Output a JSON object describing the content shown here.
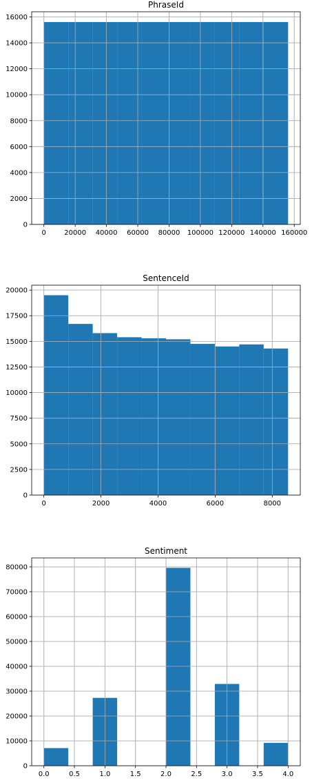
{
  "chart_data": [
    {
      "type": "bar",
      "title": "PhraseId",
      "bin_edges": [
        1,
        15606,
        31212,
        46818,
        62424,
        78030,
        93636,
        109241,
        124847,
        140453,
        156060
      ],
      "values": [
        15606,
        15606,
        15606,
        15606,
        15606,
        15606,
        15606,
        15606,
        15606,
        15606
      ],
      "color": "#1f77b4",
      "xlim": [
        -7800,
        163860
      ],
      "ylim": [
        0,
        16400
      ],
      "xticks": [
        0,
        20000,
        40000,
        60000,
        80000,
        100000,
        120000,
        140000,
        160000
      ],
      "yticks": [
        0,
        2000,
        4000,
        6000,
        8000,
        10000,
        12000,
        14000,
        16000
      ],
      "xlabel": "",
      "ylabel": "",
      "grid": true
    },
    {
      "type": "bar",
      "title": "SentenceId",
      "bin_edges": [
        1,
        856.3,
        1711.6,
        2566.9,
        3422.2,
        4277.5,
        5132.8,
        5988.1,
        6843.4,
        7698.7,
        8554
      ],
      "values": [
        19500,
        16700,
        15800,
        15400,
        15300,
        15200,
        14750,
        14500,
        14700,
        14300
      ],
      "color": "#1f77b4",
      "xlim": [
        -426.7,
        8981.7
      ],
      "ylim": [
        0,
        20480
      ],
      "xticks": [
        0,
        2000,
        4000,
        6000,
        8000
      ],
      "yticks": [
        0,
        2500,
        5000,
        7500,
        10000,
        12500,
        15000,
        17500,
        20000
      ],
      "xlabel": "",
      "ylabel": "",
      "grid": true
    },
    {
      "type": "bar",
      "title": "Sentiment",
      "bin_edges": [
        0,
        0.4,
        0.8,
        1.2,
        1.6,
        2.0,
        2.4,
        2.8,
        3.2,
        3.6,
        4.0
      ],
      "values": [
        7100,
        0,
        27300,
        0,
        0,
        79600,
        0,
        32900,
        0,
        9200
      ],
      "color": "#1f77b4",
      "xlim": [
        -0.2,
        4.2
      ],
      "ylim": [
        0,
        83600
      ],
      "xticks": [
        0.0,
        0.5,
        1.0,
        1.5,
        2.0,
        2.5,
        3.0,
        3.5,
        4.0
      ],
      "xtick_labels": [
        "0.0",
        "0.5",
        "1.0",
        "1.5",
        "2.0",
        "2.5",
        "3.0",
        "3.5",
        "4.0"
      ],
      "yticks": [
        0,
        10000,
        20000,
        30000,
        40000,
        50000,
        60000,
        70000,
        80000
      ],
      "xlabel": "",
      "ylabel": "",
      "grid": true
    }
  ]
}
